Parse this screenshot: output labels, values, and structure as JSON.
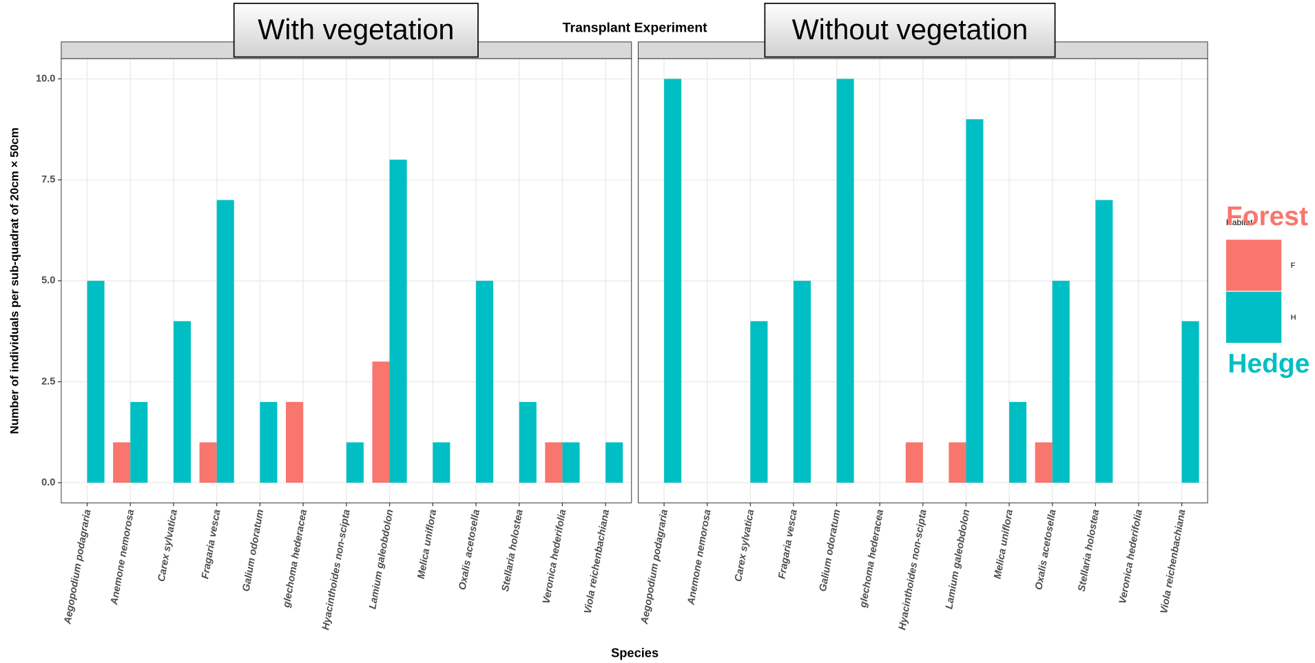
{
  "title": "Transplant Experiment",
  "x_label": "Species",
  "y_label": "Number of individuals per sub-quadrat of 20cm × 50cm",
  "legend_title": "Habitat",
  "annotations": [
    "Forest",
    "Hedge"
  ],
  "chart_data": [
    {
      "type": "bar",
      "title": "With vegetation",
      "categories": [
        "Aegopodium podagraria",
        "Anemone nemorosa",
        "Carex sylvatica",
        "Fragaria vesca",
        "Galium odoratum",
        "glechoma hederacea",
        "Hyacinthoides non-scipta",
        "Lamium galeobdolon",
        "Melica uniflora",
        "Oxalis acetosella",
        "Stellaria holostea",
        "Veronica hederifolia",
        "Viola reichenbachiana"
      ],
      "series": [
        {
          "name": "F",
          "color": "#F8766D",
          "values": [
            null,
            1,
            null,
            1,
            null,
            2,
            null,
            3,
            null,
            null,
            null,
            1,
            null
          ]
        },
        {
          "name": "H",
          "color": "#00BFC4",
          "values": [
            5,
            2,
            4,
            7,
            2,
            null,
            1,
            8,
            1,
            5,
            2,
            1,
            1
          ]
        }
      ],
      "ylim": [
        -0.5,
        10.5
      ],
      "yticks": [
        {
          "value": 0,
          "label": "0.0"
        },
        {
          "value": 2.5,
          "label": "2.5"
        },
        {
          "value": 5,
          "label": "5.0"
        },
        {
          "value": 7.5,
          "label": "7.5"
        },
        {
          "value": 10,
          "label": "10.0"
        }
      ],
      "grid": true
    },
    {
      "type": "bar",
      "title": "Without vegetation",
      "categories": [
        "Aegopodium podagraria",
        "Anemone nemorosa",
        "Carex sylvatica",
        "Fragaria vesca",
        "Galium odoratum",
        "glechoma hederacea",
        "Hyacinthoides non-scipta",
        "Lamium galeobdolon",
        "Melica uniflora",
        "Oxalis acetosella",
        "Stellaria holostea",
        "Veronica hederifolia",
        "Viola reichenbachiana"
      ],
      "series": [
        {
          "name": "F",
          "color": "#F8766D",
          "values": [
            null,
            null,
            null,
            null,
            null,
            null,
            1,
            1,
            null,
            1,
            null,
            null,
            null
          ]
        },
        {
          "name": "H",
          "color": "#00BFC4",
          "values": [
            10,
            null,
            4,
            5,
            10,
            null,
            null,
            9,
            2,
            5,
            7,
            null,
            4
          ]
        }
      ],
      "ylim": [
        -0.5,
        10.5
      ],
      "yticks": [
        {
          "value": 0,
          "label": "0.0"
        },
        {
          "value": 2.5,
          "label": "2.5"
        },
        {
          "value": 5,
          "label": "5.0"
        },
        {
          "value": 7.5,
          "label": "7.5"
        },
        {
          "value": 10,
          "label": "10.0"
        }
      ],
      "grid": true
    }
  ]
}
